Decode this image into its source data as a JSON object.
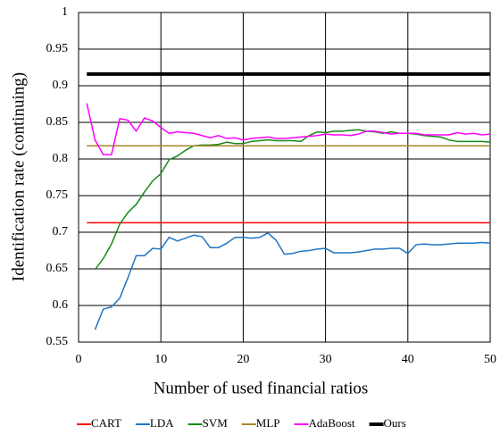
{
  "chart_data": {
    "type": "line",
    "xlabel": "Number of used financial ratios",
    "ylabel": "Identification rate (continuing)",
    "x": [
      1,
      2,
      3,
      4,
      5,
      6,
      7,
      8,
      9,
      10,
      11,
      12,
      13,
      14,
      15,
      16,
      17,
      18,
      19,
      20,
      21,
      22,
      23,
      24,
      25,
      26,
      27,
      28,
      29,
      30,
      31,
      32,
      33,
      34,
      35,
      36,
      37,
      38,
      39,
      40,
      41,
      42,
      43,
      44,
      45,
      46,
      47,
      48,
      49,
      50
    ],
    "xlim": [
      0,
      50
    ],
    "xticks": [
      0,
      10,
      20,
      30,
      40,
      50
    ],
    "ylim": [
      0.55,
      1
    ],
    "yticks": [
      0.55,
      0.6,
      0.65,
      0.7,
      0.75,
      0.8,
      0.85,
      0.9,
      0.95,
      1
    ],
    "grid": true,
    "legend": "bottom",
    "series": [
      {
        "name": "CART",
        "color": "#ff0000",
        "linewidth": 1.5,
        "values": [
          0.713,
          0.713,
          0.713,
          0.713,
          0.713,
          0.713,
          0.713,
          0.713,
          0.713,
          0.713,
          0.713,
          0.713,
          0.713,
          0.713,
          0.713,
          0.713,
          0.713,
          0.713,
          0.713,
          0.713,
          0.713,
          0.713,
          0.713,
          0.713,
          0.713,
          0.713,
          0.713,
          0.713,
          0.713,
          0.713,
          0.713,
          0.713,
          0.713,
          0.713,
          0.713,
          0.713,
          0.713,
          0.713,
          0.713,
          0.713,
          0.713,
          0.713,
          0.713,
          0.713,
          0.713,
          0.713,
          0.713,
          0.713,
          0.713,
          0.713
        ]
      },
      {
        "name": "LDA",
        "color": "#1f77c4",
        "linewidth": 1.5,
        "values": [
          null,
          0.567,
          0.595,
          0.598,
          0.61,
          0.638,
          0.668,
          0.668,
          0.678,
          0.677,
          0.693,
          0.688,
          0.692,
          0.696,
          0.694,
          0.679,
          0.679,
          0.685,
          0.693,
          0.693,
          0.692,
          0.693,
          0.699,
          0.689,
          0.67,
          0.671,
          0.674,
          0.675,
          0.677,
          0.678,
          0.672,
          0.672,
          0.672,
          0.673,
          0.675,
          0.677,
          0.677,
          0.678,
          0.678,
          0.671,
          0.683,
          0.684,
          0.683,
          0.683,
          0.684,
          0.685,
          0.685,
          0.685,
          0.686,
          0.685
        ]
      },
      {
        "name": "SVM",
        "color": "#168a16",
        "linewidth": 1.5,
        "values": [
          null,
          0.649,
          0.664,
          0.684,
          0.711,
          0.727,
          0.738,
          0.755,
          0.77,
          0.78,
          0.799,
          0.804,
          0.812,
          0.818,
          0.819,
          0.819,
          0.82,
          0.823,
          0.821,
          0.821,
          0.824,
          0.825,
          0.826,
          0.825,
          0.825,
          0.825,
          0.824,
          0.832,
          0.837,
          0.836,
          0.838,
          0.838,
          0.839,
          0.84,
          0.838,
          0.837,
          0.835,
          0.837,
          0.835,
          0.835,
          0.834,
          0.832,
          0.831,
          0.83,
          0.826,
          0.824,
          0.824,
          0.824,
          0.824,
          0.823
        ]
      },
      {
        "name": "MLP",
        "color": "#a8862a",
        "linewidth": 1.5,
        "values": [
          0.818,
          0.818,
          0.818,
          0.818,
          0.818,
          0.818,
          0.818,
          0.818,
          0.818,
          0.818,
          0.818,
          0.818,
          0.818,
          0.818,
          0.818,
          0.818,
          0.818,
          0.818,
          0.818,
          0.818,
          0.818,
          0.818,
          0.818,
          0.818,
          0.818,
          0.818,
          0.818,
          0.818,
          0.818,
          0.818,
          0.818,
          0.818,
          0.818,
          0.818,
          0.818,
          0.818,
          0.818,
          0.818,
          0.818,
          0.818,
          0.818,
          0.818,
          0.818,
          0.818,
          0.818,
          0.818,
          0.818,
          0.818,
          0.818,
          0.818
        ]
      },
      {
        "name": "AdaBoost",
        "color": "#ff00ff",
        "linewidth": 1.5,
        "values": [
          0.876,
          0.826,
          0.806,
          0.806,
          0.855,
          0.853,
          0.838,
          0.856,
          0.852,
          0.843,
          0.835,
          0.837,
          0.836,
          0.835,
          0.832,
          0.829,
          0.832,
          0.828,
          0.829,
          0.826,
          0.828,
          0.829,
          0.83,
          0.828,
          0.828,
          0.829,
          0.83,
          0.831,
          0.832,
          0.834,
          0.833,
          0.833,
          0.832,
          0.834,
          0.838,
          0.838,
          0.836,
          0.834,
          0.835,
          0.835,
          0.835,
          0.833,
          0.833,
          0.833,
          0.833,
          0.836,
          0.834,
          0.835,
          0.833,
          0.834
        ]
      },
      {
        "name": "Ours",
        "color": "#000000",
        "linewidth": 4,
        "values": [
          0.916,
          0.916,
          0.916,
          0.916,
          0.916,
          0.916,
          0.916,
          0.916,
          0.916,
          0.916,
          0.916,
          0.916,
          0.916,
          0.916,
          0.916,
          0.916,
          0.916,
          0.916,
          0.916,
          0.916,
          0.916,
          0.916,
          0.916,
          0.916,
          0.916,
          0.916,
          0.916,
          0.916,
          0.916,
          0.916,
          0.916,
          0.916,
          0.916,
          0.916,
          0.916,
          0.916,
          0.916,
          0.916,
          0.916,
          0.916,
          0.916,
          0.916,
          0.916,
          0.916,
          0.916,
          0.916,
          0.916,
          0.916,
          0.916,
          0.916
        ]
      }
    ]
  }
}
